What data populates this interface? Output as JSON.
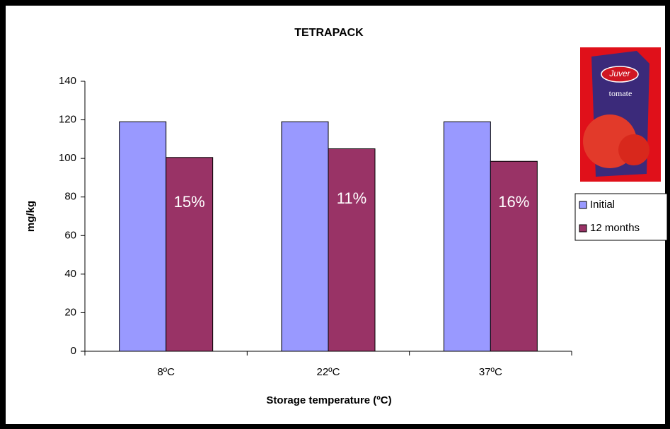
{
  "chart_data": {
    "type": "bar",
    "title": "TETRAPACK",
    "x_label": "Storage temperature (ºC)",
    "y_label": "mg/kg",
    "categories": [
      "8ºC",
      "22ºC",
      "37ºC"
    ],
    "series": [
      {
        "name": "Initial",
        "color": "#9999ff",
        "values": [
          119,
          119,
          119
        ]
      },
      {
        "name": "12 months",
        "color": "#993366",
        "values": [
          100.5,
          105,
          98.5
        ]
      }
    ],
    "annotations": [
      "15%",
      "11%",
      "16%"
    ],
    "ylim": [
      0,
      140
    ],
    "yticks": [
      0,
      20,
      40,
      60,
      80,
      100,
      120,
      140
    ],
    "grid": false,
    "legend": "right",
    "product_image": {
      "brand": "Juver",
      "label": "tomate"
    }
  }
}
